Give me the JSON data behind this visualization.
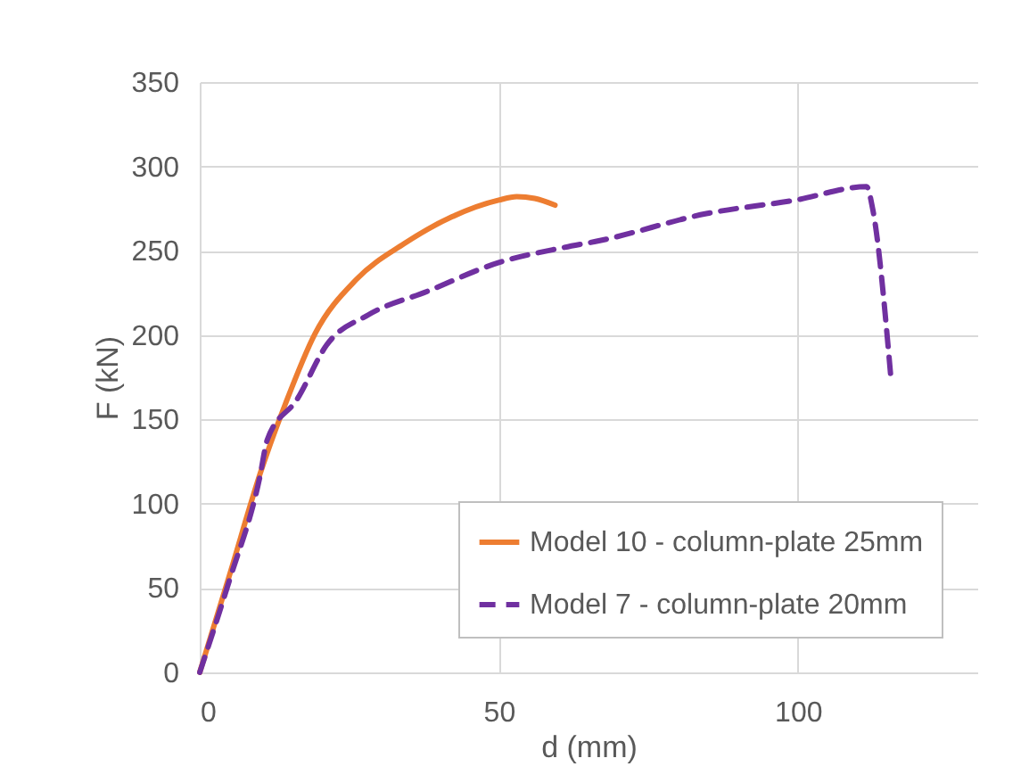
{
  "chart_data": {
    "type": "line",
    "xlabel": "d (mm)",
    "ylabel": "F (kN)",
    "xlim": [
      0,
      130
    ],
    "xticks": [
      0,
      50,
      100
    ],
    "ylim": [
      0,
      350
    ],
    "yticks": [
      0,
      50,
      100,
      150,
      200,
      250,
      300,
      350
    ],
    "grid": true,
    "legend": "bottom right",
    "marker": "none",
    "series": [
      {
        "name": "Model 10 - column-plate 25mm",
        "color": "#ed7d31",
        "line_style": "solid",
        "x": [
          0,
          5,
          10.3,
          14.3,
          19.3,
          26.2,
          34.1,
          42.1,
          50,
          53,
          56,
          59.4
        ],
        "values": [
          0,
          58,
          120,
          159,
          201,
          233,
          254,
          270,
          280,
          282,
          281,
          277
        ]
      },
      {
        "name": "Model 7 - column-plate 20mm",
        "color": "#7030a0",
        "line_style": "dashed",
        "x": [
          0,
          5,
          10,
          11.3,
          16.3,
          21.2,
          28.2,
          38.1,
          50,
          61,
          66.9,
          84.7,
          99.6,
          111.5,
          112.5,
          115.5
        ],
        "values": [
          0,
          55,
          115,
          138,
          162,
          194,
          212,
          226,
          243,
          252,
          256,
          272,
          280,
          288,
          275,
          177
        ]
      }
    ]
  }
}
